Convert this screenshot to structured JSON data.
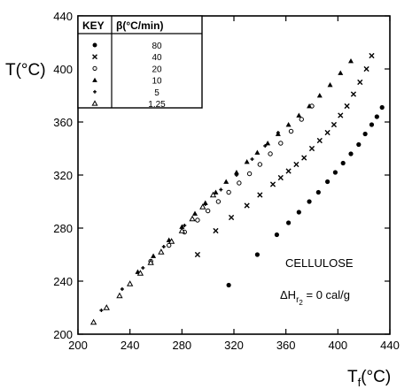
{
  "chart_data": {
    "type": "scatter",
    "title": "",
    "xlabel": "T",
    "xlabel_subscript": "f",
    "xlabel_unit": "(°C)",
    "ylabel": "T(°C)",
    "xlim": [
      200,
      440
    ],
    "ylim": [
      200,
      440
    ],
    "x_ticks": [
      200,
      240,
      280,
      320,
      360,
      400,
      440
    ],
    "y_ticks": [
      200,
      240,
      280,
      320,
      360,
      400,
      440
    ],
    "grid": false,
    "legend": {
      "placement": "top-left",
      "header_key": "KEY",
      "header_rate": "β(°C/min)",
      "entries": [
        "80",
        "40",
        "20",
        "10",
        "5",
        "1.25"
      ]
    },
    "annotations": {
      "material": "CELLULOSE",
      "enthalpy_prefix": "ΔH",
      "enthalpy_sub": "r",
      "enthalpy_subsub": "2",
      "enthalpy_suffix": " = 0 cal/g"
    },
    "series": [
      {
        "marker": "filled-circle",
        "x": [
          316,
          338,
          353,
          362,
          370,
          378,
          385,
          392,
          398,
          404,
          410,
          416,
          421,
          426,
          430,
          434
        ],
        "y": [
          237,
          260,
          275,
          284,
          292,
          300,
          307,
          315,
          322,
          329,
          336,
          343,
          351,
          358,
          364,
          371
        ]
      },
      {
        "marker": "x",
        "x": [
          292,
          306,
          318,
          330,
          340,
          350,
          356,
          362,
          368,
          374,
          380,
          386,
          392,
          397,
          402,
          407,
          412,
          417,
          422,
          426
        ],
        "y": [
          260,
          278,
          288,
          297,
          305,
          313,
          318,
          323,
          328,
          333,
          340,
          346,
          352,
          358,
          365,
          372,
          381,
          390,
          400,
          410
        ]
      },
      {
        "marker": "open-circle",
        "x": [
          256,
          270,
          282,
          292,
          300,
          308,
          316,
          324,
          332,
          340,
          348,
          356,
          364,
          372,
          380
        ],
        "y": [
          255,
          267,
          277,
          286,
          293,
          300,
          307,
          314,
          321,
          328,
          336,
          344,
          353,
          362,
          372
        ]
      },
      {
        "marker": "filled-triangle",
        "x": [
          246,
          258,
          270,
          280,
          290,
          298,
          306,
          314,
          322,
          330,
          338,
          346,
          354,
          362,
          370,
          378,
          386,
          394,
          402,
          410
        ],
        "y": [
          247,
          259,
          271,
          281,
          291,
          299,
          307,
          315,
          322,
          330,
          337,
          344,
          351,
          358,
          365,
          372,
          380,
          388,
          397,
          406
        ]
      },
      {
        "marker": "plus-dot",
        "x": [
          218,
          234,
          250,
          266,
          282,
          298,
          310,
          322,
          334,
          344,
          354
        ],
        "y": [
          218,
          234,
          250,
          266,
          282,
          298,
          309,
          320,
          332,
          342,
          352
        ]
      },
      {
        "marker": "open-triangle",
        "x": [
          212,
          222,
          232,
          240,
          248,
          256,
          264,
          272,
          280,
          288,
          296,
          304
        ],
        "y": [
          209,
          220,
          229,
          238,
          246,
          254,
          262,
          270,
          278,
          287,
          296,
          305
        ]
      }
    ]
  }
}
